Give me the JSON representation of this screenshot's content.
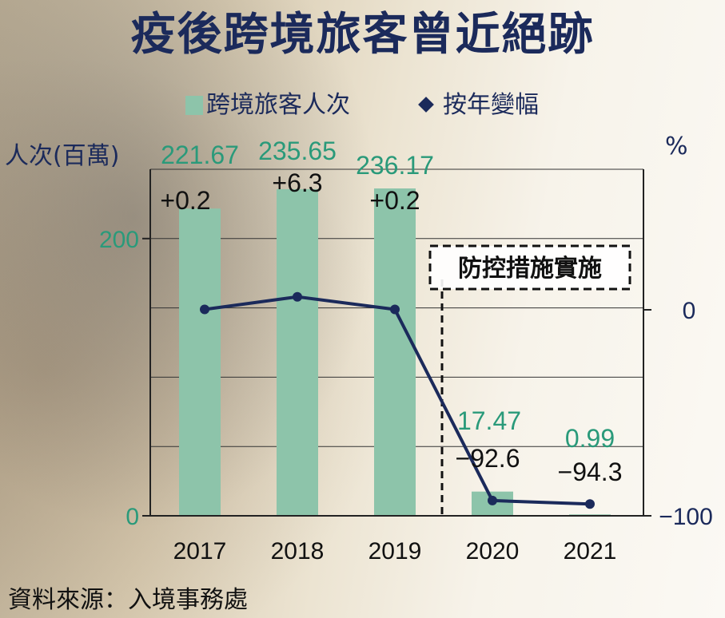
{
  "title": "疫後跨境旅客曾近絕跡",
  "legend": {
    "bar_label": "跨境旅客人次",
    "line_label": "按年變幅"
  },
  "y_left_label": "人次(百萬)",
  "y_right_label": "%",
  "annotation": "防控措施實施",
  "source": "資料來源：入境事務處",
  "colors": {
    "bar": "#8dc4aa",
    "bar_label": "#2a9a7a",
    "line": "#1b2a5b",
    "title": "#1b2a5b"
  },
  "chart_data": {
    "type": "bar",
    "categories": [
      "2017",
      "2018",
      "2019",
      "2020",
      "2021"
    ],
    "series": [
      {
        "name": "跨境旅客人次",
        "type": "bar",
        "axis": "left",
        "values": [
          221.67,
          235.65,
          236.17,
          17.47,
          0.99
        ],
        "value_labels": [
          "221.67",
          "235.65",
          "236.17",
          "17.47",
          "0.99"
        ]
      },
      {
        "name": "按年變幅",
        "type": "line",
        "axis": "right",
        "values": [
          0.2,
          6.3,
          0.2,
          -92.6,
          -94.3
        ],
        "value_labels": [
          "+0.2",
          "+6.3",
          "+0.2",
          "−92.6",
          "−94.3"
        ]
      }
    ],
    "y_left": {
      "ticks": [
        0,
        200
      ],
      "tick_labels": [
        "0",
        "200"
      ],
      "range": [
        0,
        250
      ]
    },
    "y_right": {
      "ticks": [
        0,
        -100
      ],
      "tick_labels": [
        "0",
        "−100"
      ],
      "range": [
        -100,
        0
      ]
    },
    "grid": true
  }
}
